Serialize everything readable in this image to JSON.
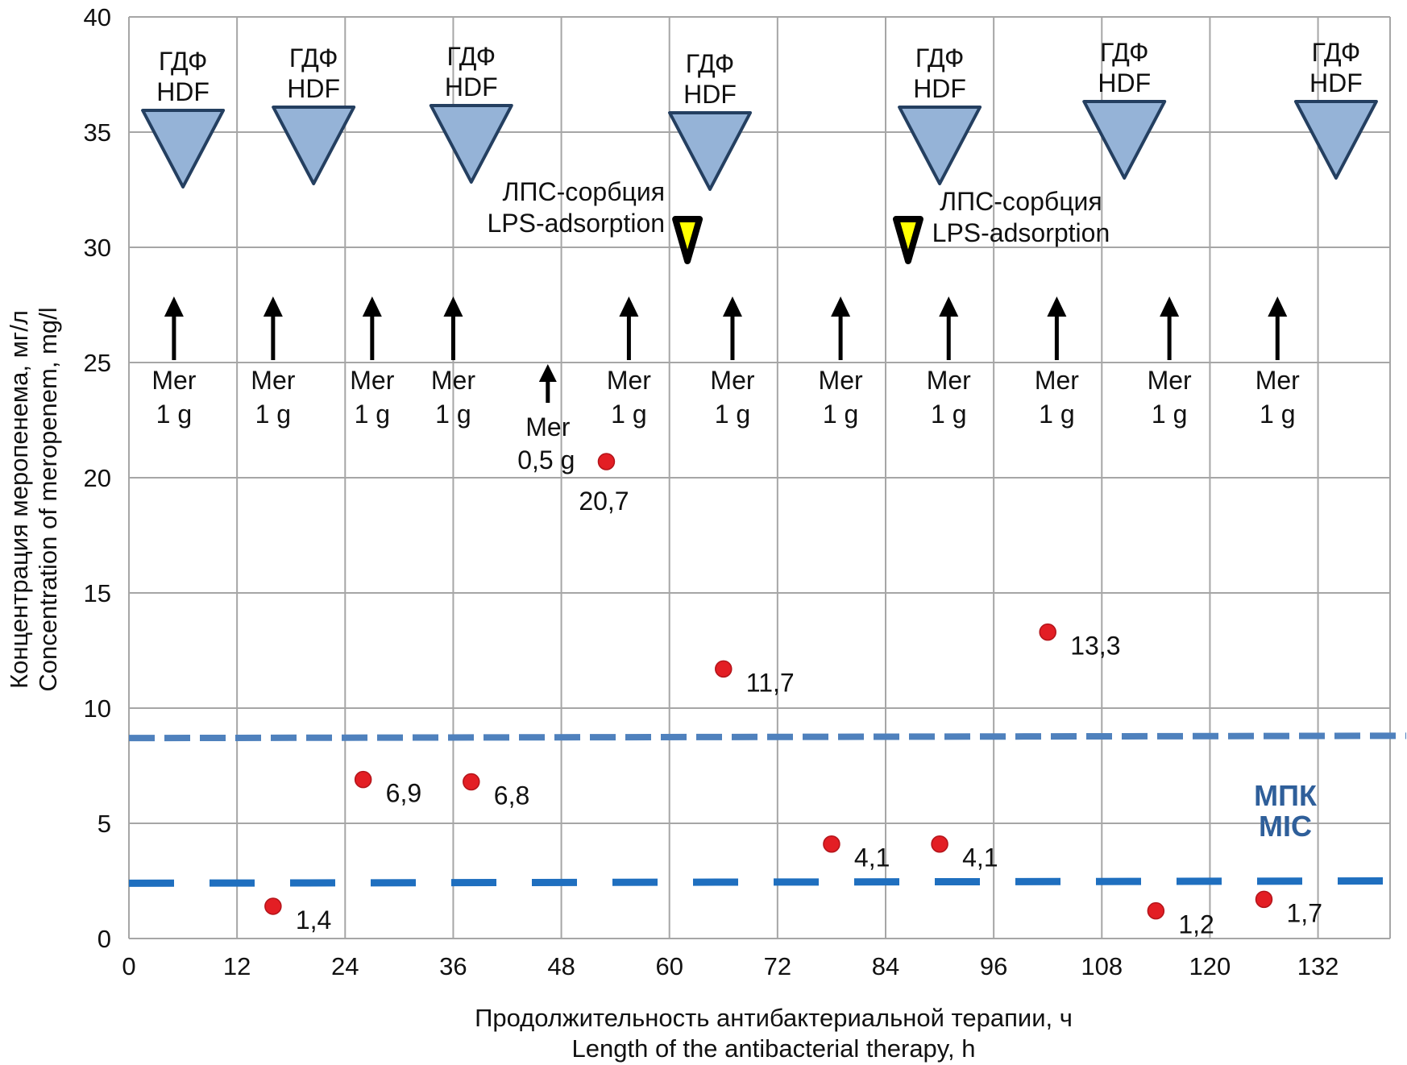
{
  "chart_data": {
    "type": "scatter",
    "title": "",
    "xlabel": [
      "Продолжительность антибактериальной терапии, ч",
      "Length of the antibacterial therapy, h"
    ],
    "ylabel": [
      "Концентрация меропенема, мг/л",
      "Concentration of meropenem, mg/l"
    ],
    "xlim": [
      0,
      140
    ],
    "ylim": [
      0,
      40
    ],
    "x_ticks": [
      0,
      12,
      24,
      36,
      48,
      60,
      72,
      84,
      96,
      108,
      120,
      132
    ],
    "y_ticks": [
      0,
      5,
      10,
      15,
      20,
      25,
      30,
      35,
      40
    ],
    "grid": true,
    "series": [
      {
        "name": "Meropenem concentration",
        "color": "#e31e24",
        "points": [
          {
            "x": 16,
            "y": 1.4,
            "label": "1,4"
          },
          {
            "x": 26,
            "y": 6.9,
            "label": "6,9"
          },
          {
            "x": 38,
            "y": 6.8,
            "label": "6,8"
          },
          {
            "x": 53,
            "y": 20.7,
            "label": "20,7"
          },
          {
            "x": 66,
            "y": 11.7,
            "label": "11,7"
          },
          {
            "x": 78,
            "y": 4.1,
            "label": "4,1"
          },
          {
            "x": 90,
            "y": 4.1,
            "label": "4,1"
          },
          {
            "x": 102,
            "y": 13.3,
            "label": "13,3"
          },
          {
            "x": 114,
            "y": 1.2,
            "label": "1,2"
          },
          {
            "x": 126,
            "y": 1.7,
            "label": "1,7"
          }
        ]
      }
    ],
    "reference_lines": [
      {
        "name": "MIC upper",
        "color": "#4f81bd",
        "y_start": 8.7,
        "y_end": 8.8,
        "style": "dashed"
      },
      {
        "name": "MIC lower",
        "color": "#1f6fbf",
        "y_start": 2.4,
        "y_end": 2.5,
        "style": "long-dashed"
      }
    ],
    "mic_label": [
      "МПК",
      "MIC"
    ],
    "mic_color": "#2f5f9a",
    "hdf_events": {
      "label": [
        "ГДФ",
        "HDF"
      ],
      "fill": "#95b3d7",
      "stroke": "#243f60",
      "x": [
        6,
        20.5,
        38,
        64.5,
        90,
        110.5,
        134
      ]
    },
    "lps_events": {
      "label": [
        "ЛПС-сорбция",
        "LPS-adsorption"
      ],
      "fill": "#ffff00",
      "stroke": "#000000",
      "x": [
        62,
        86.5
      ]
    },
    "doses": [
      {
        "x": 5,
        "label": [
          "Mer",
          "1 g"
        ]
      },
      {
        "x": 16,
        "label": [
          "Mer",
          "1 g"
        ]
      },
      {
        "x": 27,
        "label": [
          "Mer",
          "1 g"
        ]
      },
      {
        "x": 36,
        "label": [
          "Mer",
          "1 g"
        ]
      },
      {
        "x": 46.5,
        "label": [
          "Mer",
          "0,5 g"
        ],
        "small": true
      },
      {
        "x": 55.5,
        "label": [
          "Mer",
          "1 g"
        ]
      },
      {
        "x": 67,
        "label": [
          "Mer",
          "1 g"
        ]
      },
      {
        "x": 79,
        "label": [
          "Mer",
          "1 g"
        ]
      },
      {
        "x": 91,
        "label": [
          "Mer",
          "1 g"
        ]
      },
      {
        "x": 103,
        "label": [
          "Mer",
          "1 g"
        ]
      },
      {
        "x": 115.5,
        "label": [
          "Mer",
          "1 g"
        ]
      },
      {
        "x": 127.5,
        "label": [
          "Mer",
          "1 g"
        ]
      }
    ]
  }
}
